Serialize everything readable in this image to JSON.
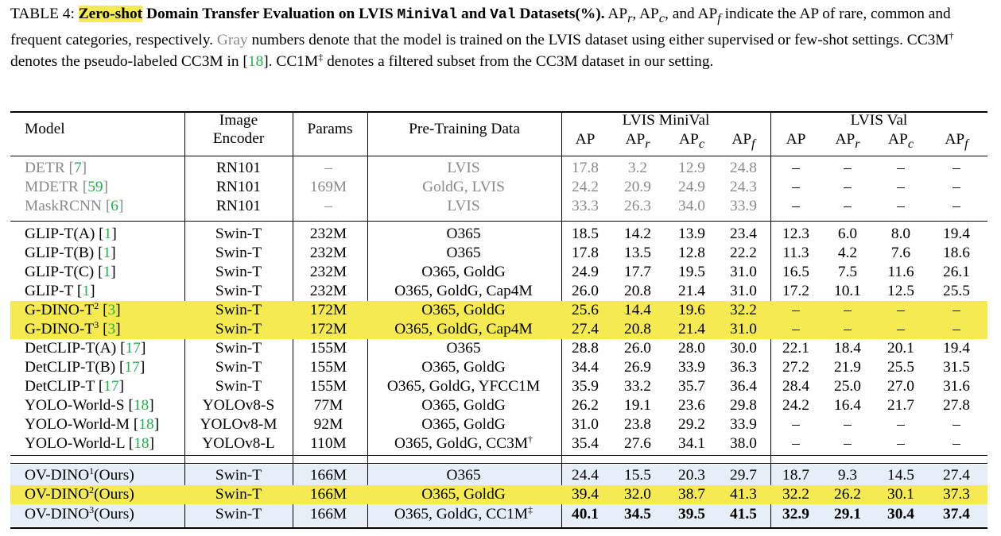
{
  "caption": {
    "label": "TABLE 4: ",
    "hl": "Zero-shot",
    "bold1": " Domain Transfer Evaluation on LVIS ",
    "mono1": "MiniVal",
    "bold2": " and ",
    "mono2": "Val",
    "bold3": " Datasets(%).",
    "t1": " AP",
    "s1": "r",
    "t2": ", AP",
    "s2": "c",
    "t3": ", and AP",
    "s3": "f",
    "t4": " indicate the AP of rare, common and frequent categories, respectively. ",
    "gray_word": "Gray",
    "t5": " numbers denote that the model is trained on the LVIS dataset using either supervised or few-shot settings. CC3M",
    "dag": "†",
    "t6": " denotes the pseudo-labeled CC3M in [",
    "ref": "18",
    "t7": "]. CC1M",
    "ddag": "‡",
    "t8": " denotes a filtered subset from the CC3M dataset in our setting."
  },
  "header": {
    "model": "Model",
    "encoder_l1": "Image",
    "encoder_l2": "Encoder",
    "params": "Params",
    "data": "Pre-Training Data",
    "minival": "LVIS MiniVal",
    "val": "LVIS Val",
    "ap": "AP",
    "apr": "AP",
    "apr_sub": "r",
    "apc": "AP",
    "apc_sub": "c",
    "apf": "AP",
    "apf_sub": "f"
  },
  "rows": [
    {
      "name": "DETR",
      "ref": "7",
      "sup": "",
      "enc": "RN101",
      "params": "–",
      "data": "LVIS",
      "data_sup": "",
      "v": [
        "17.8",
        "3.2",
        "12.9",
        "24.8",
        "–",
        "–",
        "–",
        "–"
      ]
    },
    {
      "name": "MDETR",
      "ref": "59",
      "sup": "",
      "enc": "RN101",
      "params": "169M",
      "data": "GoldG, LVIS",
      "data_sup": "",
      "v": [
        "24.2",
        "20.9",
        "24.9",
        "24.3",
        "–",
        "–",
        "–",
        "–"
      ]
    },
    {
      "name": "MaskRCNN",
      "ref": "6",
      "sup": "",
      "enc": "RN101",
      "params": "–",
      "data": "LVIS",
      "data_sup": "",
      "v": [
        "33.3",
        "26.3",
        "34.0",
        "33.9",
        "–",
        "–",
        "–",
        "–"
      ]
    },
    {
      "name": "GLIP-T(A)",
      "ref": "1",
      "sup": "",
      "enc": "Swin-T",
      "params": "232M",
      "data": "O365",
      "data_sup": "",
      "v": [
        "18.5",
        "14.2",
        "13.9",
        "23.4",
        "12.3",
        "6.0",
        "8.0",
        "19.4"
      ]
    },
    {
      "name": "GLIP-T(B)",
      "ref": "1",
      "sup": "",
      "enc": "Swin-T",
      "params": "232M",
      "data": "O365",
      "data_sup": "",
      "v": [
        "17.8",
        "13.5",
        "12.8",
        "22.2",
        "11.3",
        "4.2",
        "7.6",
        "18.6"
      ]
    },
    {
      "name": "GLIP-T(C)",
      "ref": "1",
      "sup": "",
      "enc": "Swin-T",
      "params": "232M",
      "data": "O365, GoldG",
      "data_sup": "",
      "v": [
        "24.9",
        "17.7",
        "19.5",
        "31.0",
        "16.5",
        "7.5",
        "11.6",
        "26.1"
      ]
    },
    {
      "name": "GLIP-T",
      "ref": "1",
      "sup": "",
      "enc": "Swin-T",
      "params": "232M",
      "data": "O365, GoldG, Cap4M",
      "data_sup": "",
      "v": [
        "26.0",
        "20.8",
        "21.4",
        "31.0",
        "17.2",
        "10.1",
        "12.5",
        "25.5"
      ]
    },
    {
      "name": "G-DINO-T",
      "ref": "3",
      "sup": "2",
      "enc": "Swin-T",
      "params": "172M",
      "data": "O365, GoldG",
      "data_sup": "",
      "v": [
        "25.6",
        "14.4",
        "19.6",
        "32.2",
        "–",
        "–",
        "–",
        "–"
      ]
    },
    {
      "name": "G-DINO-T",
      "ref": "3",
      "sup": "3",
      "enc": "Swin-T",
      "params": "172M",
      "data": "O365, GoldG, Cap4M",
      "data_sup": "",
      "v": [
        "27.4",
        "20.8",
        "21.4",
        "31.0",
        "–",
        "–",
        "–",
        "–"
      ]
    },
    {
      "name": "DetCLIP-T(A)",
      "ref": "17",
      "sup": "",
      "enc": "Swin-T",
      "params": "155M",
      "data": "O365",
      "data_sup": "",
      "v": [
        "28.8",
        "26.0",
        "28.0",
        "30.0",
        "22.1",
        "18.4",
        "20.1",
        "19.4"
      ]
    },
    {
      "name": "DetCLIP-T(B)",
      "ref": "17",
      "sup": "",
      "enc": "Swin-T",
      "params": "155M",
      "data": "O365, GoldG",
      "data_sup": "",
      "v": [
        "34.4",
        "26.9",
        "33.9",
        "36.3",
        "27.2",
        "21.9",
        "25.5",
        "31.5"
      ]
    },
    {
      "name": "DetCLIP-T",
      "ref": "17",
      "sup": "",
      "enc": "Swin-T",
      "params": "155M",
      "data": "O365, GoldG, YFCC1M",
      "data_sup": "",
      "v": [
        "35.9",
        "33.2",
        "35.7",
        "36.4",
        "28.4",
        "25.0",
        "27.0",
        "31.6"
      ]
    },
    {
      "name": "YOLO-World-S",
      "ref": "18",
      "sup": "",
      "enc": "YOLOv8-S",
      "params": "77M",
      "data": "O365, GoldG",
      "data_sup": "",
      "v": [
        "26.2",
        "19.1",
        "23.6",
        "29.8",
        "24.2",
        "16.4",
        "21.7",
        "27.8"
      ]
    },
    {
      "name": "YOLO-World-M",
      "ref": "18",
      "sup": "",
      "enc": "YOLOv8-M",
      "params": "92M",
      "data": "O365, GoldG",
      "data_sup": "",
      "v": [
        "31.0",
        "23.8",
        "29.2",
        "33.9",
        "–",
        "–",
        "–",
        "–"
      ]
    },
    {
      "name": "YOLO-World-L",
      "ref": "18",
      "sup": "",
      "enc": "YOLOv8-L",
      "params": "110M",
      "data": "O365, GoldG, CC3M",
      "data_sup": "†",
      "v": [
        "35.4",
        "27.6",
        "34.1",
        "38.0",
        "–",
        "–",
        "–",
        "–"
      ]
    },
    {
      "name": "OV-DINO",
      "ref": "",
      "sup": "1",
      "suffix": "(Ours)",
      "enc": "Swin-T",
      "params": "166M",
      "data": "O365",
      "data_sup": "",
      "v": [
        "24.4",
        "15.5",
        "20.3",
        "29.7",
        "18.7",
        "9.3",
        "14.5",
        "27.4"
      ]
    },
    {
      "name": "OV-DINO",
      "ref": "",
      "sup": "2",
      "suffix": "(Ours)",
      "enc": "Swin-T",
      "params": "166M",
      "data": "O365, GoldG",
      "data_sup": "",
      "v": [
        "39.4",
        "32.0",
        "38.7",
        "41.3",
        "32.2",
        "26.2",
        "30.1",
        "37.3"
      ]
    },
    {
      "name": "OV-DINO",
      "ref": "",
      "sup": "3",
      "suffix": "(Ours)",
      "enc": "Swin-T",
      "params": "166M",
      "data": "O365, GoldG, CC1M",
      "data_sup": "‡",
      "v": [
        "40.1",
        "34.5",
        "39.5",
        "41.5",
        "32.9",
        "29.1",
        "30.4",
        "37.4"
      ]
    }
  ]
}
